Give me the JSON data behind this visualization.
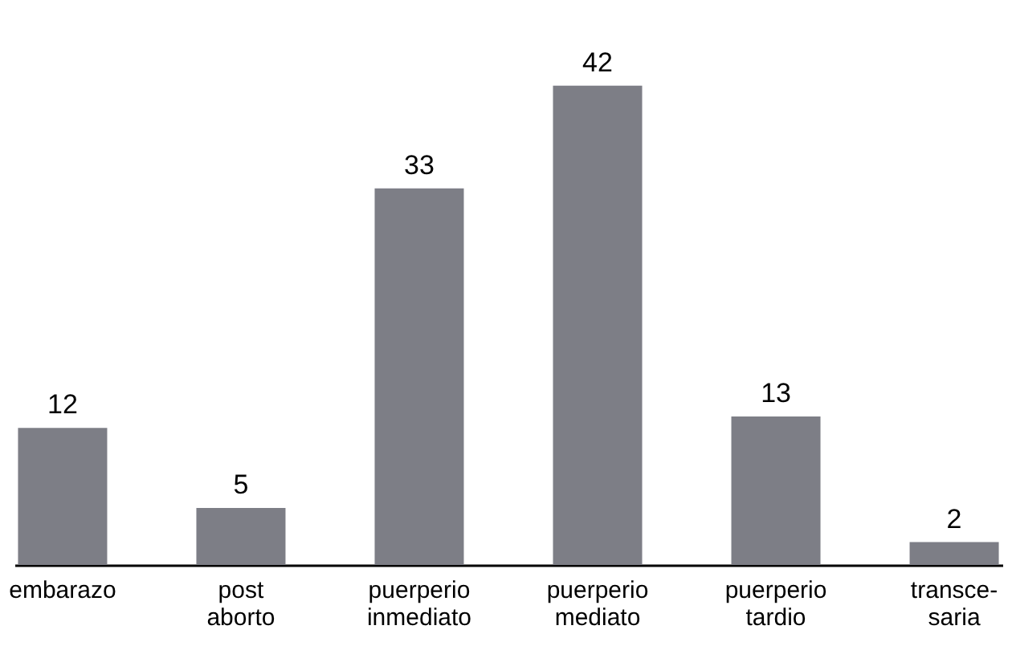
{
  "chart_data": {
    "type": "bar",
    "categories": [
      "embarazo",
      "post\naborto",
      "puerperio\ninmediato",
      "puerperio\nmediato",
      "puerperio\ntardio",
      "transce-\nsaria"
    ],
    "values": [
      12,
      5,
      33,
      42,
      13,
      2
    ],
    "color": "#7d7e86",
    "data_labels": true
  }
}
